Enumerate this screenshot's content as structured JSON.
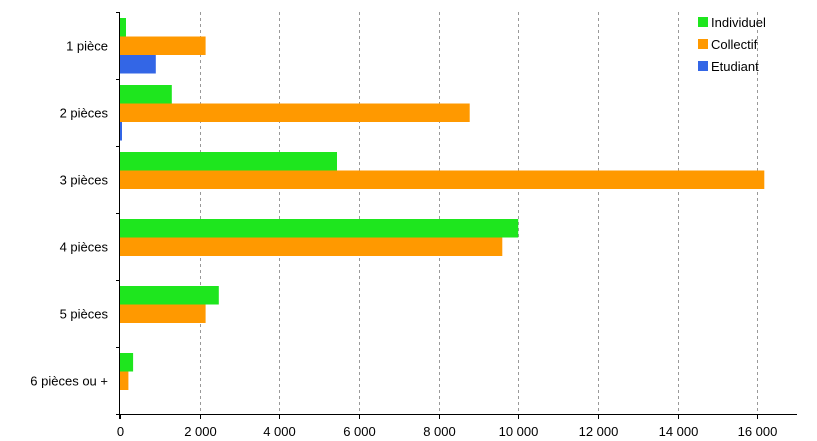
{
  "chart_data": {
    "type": "bar",
    "orientation": "horizontal",
    "categories": [
      "1 pièce",
      "2 pièces",
      "3 pièces",
      "4 pièces",
      "5 pièces",
      "6 pièces ou +"
    ],
    "series": [
      {
        "name": "Individuel",
        "color": "#1ee61e",
        "values": [
          150,
          1300,
          5450,
          10000,
          2480,
          330
        ]
      },
      {
        "name": "Collectif",
        "color": "#ff9900",
        "values": [
          2150,
          8780,
          16180,
          9600,
          2150,
          210
        ]
      },
      {
        "name": "Etudiant",
        "color": "#3366e6",
        "values": [
          900,
          50,
          0,
          0,
          0,
          0
        ]
      }
    ],
    "xlim": [
      0,
      17000
    ],
    "xticks": [
      0,
      2000,
      4000,
      6000,
      8000,
      10000,
      12000,
      14000,
      16000
    ],
    "xtick_labels": [
      "0",
      "2 000",
      "4 000",
      "6 000",
      "8 000",
      "10 000",
      "12 000",
      "14 000",
      "16 000"
    ],
    "grid": "vertical-dashed",
    "legend_position": "top-right",
    "title": "",
    "xlabel": "",
    "ylabel": ""
  }
}
